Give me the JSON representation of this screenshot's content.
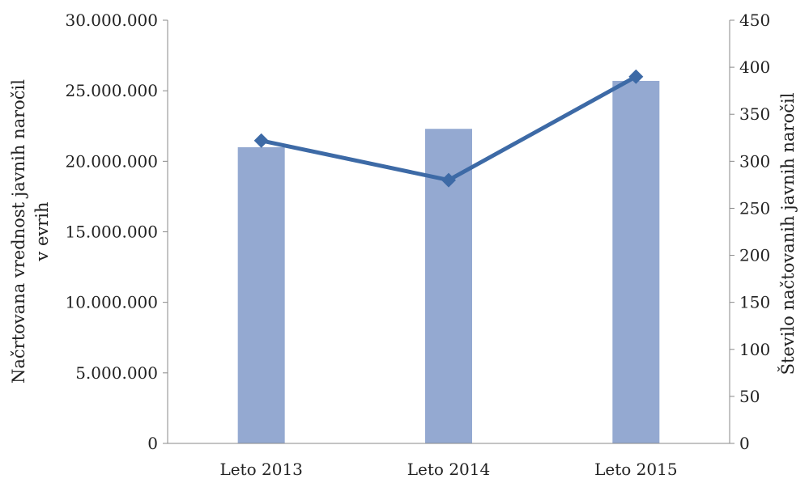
{
  "chart_data": {
    "type": "bar+line",
    "categories": [
      "Leto 2013",
      "Leto 2014",
      "Leto 2015"
    ],
    "bar_series": {
      "axis": "left",
      "color": "#94a9d1",
      "values": [
        21000000,
        22300000,
        25700000
      ]
    },
    "line_series": {
      "axis": "right",
      "color": "#3d6aa6",
      "marker": "diamond",
      "values": [
        322,
        280,
        390
      ]
    },
    "y_left": {
      "label_lines": [
        "Načrtovana vrednost javnih naročil",
        "v evrih"
      ],
      "min": 0,
      "max": 30000000,
      "ticks": [
        0,
        5000000,
        10000000,
        15000000,
        20000000,
        25000000,
        30000000
      ],
      "tick_labels": [
        "0",
        "5.000.000",
        "10.000.000",
        "15.000.000",
        "20.000.000",
        "25.000.000",
        "30.000.000"
      ]
    },
    "y_right": {
      "label": "Število načtovanih javnih naročil",
      "min": 0,
      "max": 450,
      "ticks": [
        0,
        50,
        100,
        150,
        200,
        250,
        300,
        350,
        400,
        450
      ],
      "tick_labels": [
        "0",
        "50",
        "100",
        "150",
        "200",
        "250",
        "300",
        "350",
        "400",
        "450"
      ]
    },
    "grid": false,
    "legend": "none",
    "axis_color": "#898989"
  }
}
